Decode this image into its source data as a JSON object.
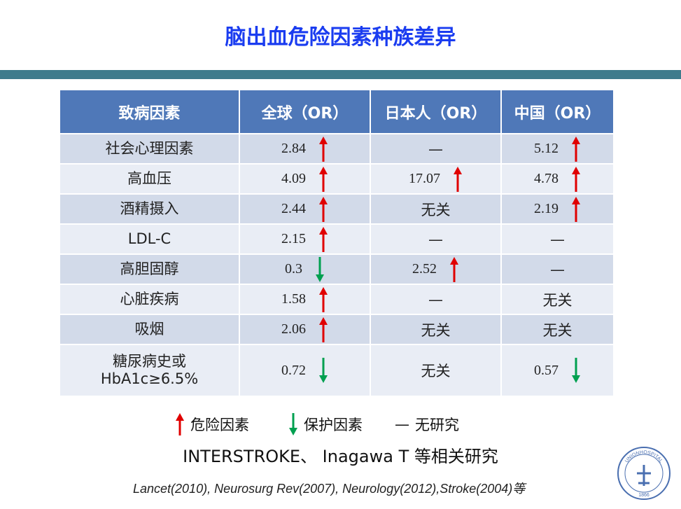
{
  "header": {
    "title": "脑出血危险因素种族差异"
  },
  "table": {
    "columns": [
      "致病因素",
      "全球（OR）",
      "日本人（OR）",
      "中国（OR）"
    ],
    "rows": [
      [
        {
          "text": "社会心理因素"
        },
        {
          "text": "2.84",
          "arrow": "up"
        },
        {
          "text": "—"
        },
        {
          "text": "5.12",
          "arrow": "up"
        }
      ],
      [
        {
          "text": "高血压"
        },
        {
          "text": "4.09",
          "arrow": "up"
        },
        {
          "text": "17.07",
          "arrow": "up"
        },
        {
          "text": "4.78",
          "arrow": "up"
        }
      ],
      [
        {
          "text": "酒精摄入"
        },
        {
          "text": "2.44",
          "arrow": "up"
        },
        {
          "text": "无关"
        },
        {
          "text": "2.19",
          "arrow": "up"
        }
      ],
      [
        {
          "text": "LDL-C"
        },
        {
          "text": "2.15",
          "arrow": "up"
        },
        {
          "text": "—"
        },
        {
          "text": "—"
        }
      ],
      [
        {
          "text": "高胆固醇"
        },
        {
          "text": "0.3",
          "arrow": "down"
        },
        {
          "text": "2.52",
          "arrow": "up"
        },
        {
          "text": "—"
        }
      ],
      [
        {
          "text": "心脏疾病"
        },
        {
          "text": "1.58",
          "arrow": "up"
        },
        {
          "text": "—"
        },
        {
          "text": "无关"
        }
      ],
      [
        {
          "text": "吸烟"
        },
        {
          "text": "2.06",
          "arrow": "up"
        },
        {
          "text": "无关"
        },
        {
          "text": "无关"
        }
      ],
      [
        {
          "text": "糖尿病史或\nHbA1c≥6.5%"
        },
        {
          "text": "0.72",
          "arrow": "down"
        },
        {
          "text": "无关"
        },
        {
          "text": "0.57",
          "arrow": "down"
        }
      ]
    ]
  },
  "legend": {
    "risk": "危险因素",
    "protect": "保护因素",
    "none_mark": "—",
    "none": "无研究"
  },
  "source": "INTERSTROKE、 Inagawa T 等相关研究",
  "citation": "Lancet(2010), Neurosurg Rev(2007), Neurology(2012),Stroke(2004)等",
  "logo": {
    "name": "UNIONHOSPITAL",
    "year": "1866"
  }
}
